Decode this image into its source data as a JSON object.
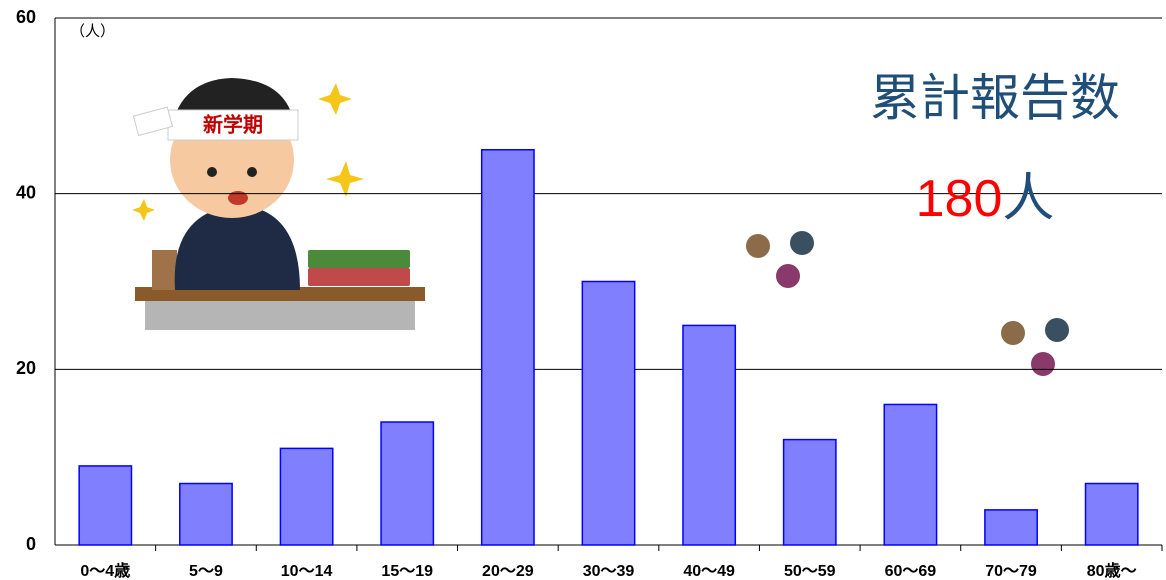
{
  "chart_data": {
    "type": "bar",
    "y_unit": "（人）",
    "annotation": "累計報告数",
    "total": {
      "number": "180",
      "unit": "人"
    },
    "categories": [
      "0～4歳",
      "5～9",
      "10～14",
      "15～19",
      "20～29",
      "30～39",
      "40～49",
      "50～59",
      "60～69",
      "70～79",
      "80歳～"
    ],
    "values": [
      9,
      7,
      11,
      14,
      45,
      30,
      25,
      12,
      16,
      4,
      7
    ],
    "color": "#8080ff",
    "ylim": [
      0,
      60
    ],
    "yticks": [
      0,
      20,
      40,
      60
    ],
    "grid": true
  }
}
